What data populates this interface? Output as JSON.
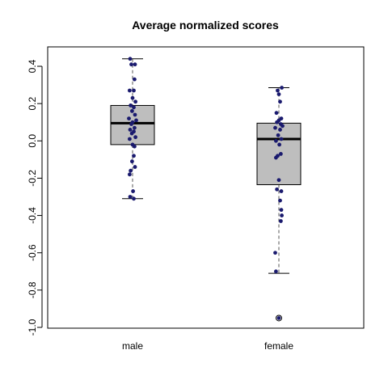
{
  "chart_data": {
    "type": "boxplot",
    "title": "Average normalized scores",
    "xlabel": "",
    "ylabel": "",
    "ylim": [
      -1.0,
      0.45
    ],
    "yticks": [
      0.4,
      0.2,
      0.0,
      -0.2,
      -0.4,
      -0.6,
      -0.8,
      -1.0
    ],
    "ytick_labels": [
      "0.4",
      "0.2",
      "0.0",
      "-0.2",
      "-0.4",
      "-0.6",
      "-0.8",
      "-1.0"
    ],
    "categories": [
      "male",
      "female"
    ],
    "grid": false,
    "colors": {
      "box": "#bebebe",
      "median": "#000000",
      "points": "#1a1a6e"
    },
    "boxes": [
      {
        "category": "male",
        "whisker_low": -0.31,
        "q1": -0.02,
        "median": 0.095,
        "q3": 0.19,
        "whisker_high": 0.44,
        "outliers": [],
        "points": [
          {
            "dx": -0.1,
            "y": 0.44
          },
          {
            "dx": 0.1,
            "y": 0.41
          },
          {
            "dx": -0.05,
            "y": 0.41
          },
          {
            "dx": 0.08,
            "y": 0.33
          },
          {
            "dx": -0.12,
            "y": 0.27
          },
          {
            "dx": 0.05,
            "y": 0.27
          },
          {
            "dx": 0.0,
            "y": 0.23
          },
          {
            "dx": 0.12,
            "y": 0.21
          },
          {
            "dx": -0.08,
            "y": 0.19
          },
          {
            "dx": 0.05,
            "y": 0.18
          },
          {
            "dx": -0.02,
            "y": 0.16
          },
          {
            "dx": 0.1,
            "y": 0.14
          },
          {
            "dx": -0.15,
            "y": 0.12
          },
          {
            "dx": 0.15,
            "y": 0.11
          },
          {
            "dx": 0.0,
            "y": 0.1
          },
          {
            "dx": -0.05,
            "y": 0.09
          },
          {
            "dx": 0.08,
            "y": 0.07
          },
          {
            "dx": -0.1,
            "y": 0.06
          },
          {
            "dx": 0.05,
            "y": 0.05
          },
          {
            "dx": -0.03,
            "y": 0.04
          },
          {
            "dx": 0.12,
            "y": 0.02
          },
          {
            "dx": -0.12,
            "y": 0.01
          },
          {
            "dx": 0.0,
            "y": -0.02
          },
          {
            "dx": 0.08,
            "y": -0.03
          },
          {
            "dx": 0.05,
            "y": -0.08
          },
          {
            "dx": -0.02,
            "y": -0.11
          },
          {
            "dx": 0.1,
            "y": -0.14
          },
          {
            "dx": -0.08,
            "y": -0.16
          },
          {
            "dx": -0.12,
            "y": -0.18
          },
          {
            "dx": 0.02,
            "y": -0.27
          },
          {
            "dx": -0.1,
            "y": -0.3
          },
          {
            "dx": 0.05,
            "y": -0.31
          }
        ]
      },
      {
        "category": "female",
        "whisker_low": -0.71,
        "q1": -0.235,
        "median": 0.01,
        "q3": 0.095,
        "whisker_high": 0.285,
        "outliers": [
          -0.95
        ],
        "points": [
          {
            "dx": 0.12,
            "y": 0.285
          },
          {
            "dx": -0.05,
            "y": 0.27
          },
          {
            "dx": 0.0,
            "y": 0.25
          },
          {
            "dx": 0.05,
            "y": 0.21
          },
          {
            "dx": -0.1,
            "y": 0.15
          },
          {
            "dx": 0.1,
            "y": 0.12
          },
          {
            "dx": 0.0,
            "y": 0.11
          },
          {
            "dx": -0.08,
            "y": 0.1
          },
          {
            "dx": 0.08,
            "y": 0.09
          },
          {
            "dx": 0.15,
            "y": 0.08
          },
          {
            "dx": -0.15,
            "y": 0.07
          },
          {
            "dx": 0.05,
            "y": 0.06
          },
          {
            "dx": -0.03,
            "y": 0.03
          },
          {
            "dx": 0.1,
            "y": 0.01
          },
          {
            "dx": -0.12,
            "y": 0.0
          },
          {
            "dx": 0.02,
            "y": -0.02
          },
          {
            "dx": 0.08,
            "y": -0.07
          },
          {
            "dx": -0.05,
            "y": -0.08
          },
          {
            "dx": -0.12,
            "y": -0.09
          },
          {
            "dx": 0.0,
            "y": -0.21
          },
          {
            "dx": -0.08,
            "y": -0.26
          },
          {
            "dx": 0.1,
            "y": -0.27
          },
          {
            "dx": 0.05,
            "y": -0.32
          },
          {
            "dx": 0.1,
            "y": -0.37
          },
          {
            "dx": 0.12,
            "y": -0.4
          },
          {
            "dx": 0.08,
            "y": -0.43
          },
          {
            "dx": -0.15,
            "y": -0.6
          },
          {
            "dx": -0.12,
            "y": -0.7
          },
          {
            "dx": 0.0,
            "y": -0.95
          }
        ]
      }
    ]
  }
}
